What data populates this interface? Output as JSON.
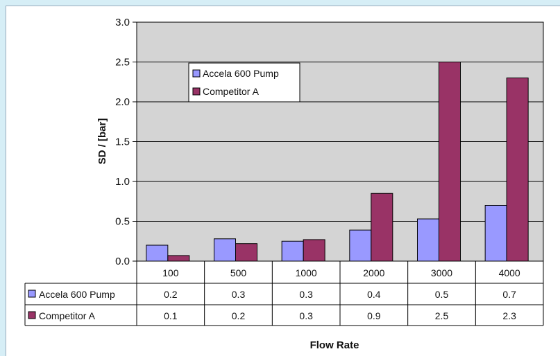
{
  "chart_data": {
    "type": "bar",
    "categories": [
      "100",
      "500",
      "1000",
      "2000",
      "3000",
      "4000"
    ],
    "series": [
      {
        "name": "Accela 600 Pump",
        "color": "#9999ff",
        "values": [
          0.2,
          0.28,
          0.25,
          0.39,
          0.53,
          0.7
        ],
        "table_values": [
          "0.2",
          "0.3",
          "0.3",
          "0.4",
          "0.5",
          "0.7"
        ]
      },
      {
        "name": "Competitor A",
        "color": "#993366",
        "values": [
          0.07,
          0.22,
          0.27,
          0.85,
          2.5,
          2.3
        ],
        "table_values": [
          "0.1",
          "0.2",
          "0.3",
          "0.9",
          "2.5",
          "2.3"
        ]
      }
    ],
    "yticks": [
      "0.0",
      "0.5",
      "1.0",
      "1.5",
      "2.0",
      "2.5",
      "3.0"
    ],
    "ylim": [
      0,
      3.0
    ],
    "ylabel": "SD / [bar]",
    "xlabel": "Flow Rate",
    "plot_background": "#d4d4d4",
    "grid": true,
    "legend_position": "top-left",
    "data_table": true
  }
}
